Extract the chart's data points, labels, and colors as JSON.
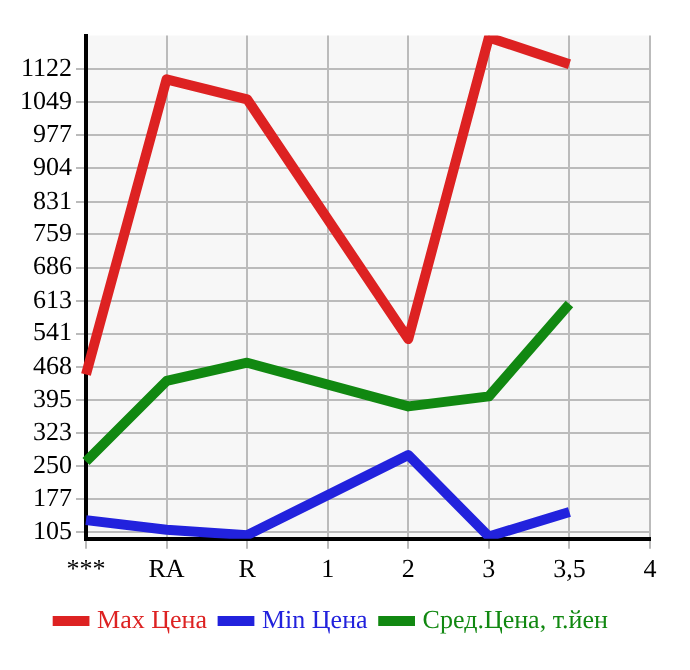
{
  "chart_data": {
    "type": "line",
    "categories": [
      "***",
      "RA",
      "R",
      "1",
      "2",
      "3",
      "3,5",
      "4"
    ],
    "series": [
      {
        "name": "Max Цена",
        "color": "#dd2222",
        "values": [
          451,
          1100,
          1056,
          null,
          529,
          1192,
          1133,
          null
        ]
      },
      {
        "name": "Min Цена",
        "color": "#2222dd",
        "values": [
          131,
          110,
          98,
          null,
          274,
          95,
          149,
          null
        ]
      },
      {
        "name": "Сред.Цена, т.йен",
        "color": "#118811",
        "values": [
          260,
          437,
          477,
          null,
          381,
          403,
          606,
          null
        ]
      }
    ],
    "ylim": [
      90,
      1196
    ],
    "yticks": [
      105,
      177,
      250,
      323,
      395,
      468,
      541,
      613,
      686,
      759,
      831,
      904,
      977,
      1049,
      1122
    ],
    "grid": true,
    "legend": "bottom",
    "marker": "none",
    "line_style": "solid"
  }
}
